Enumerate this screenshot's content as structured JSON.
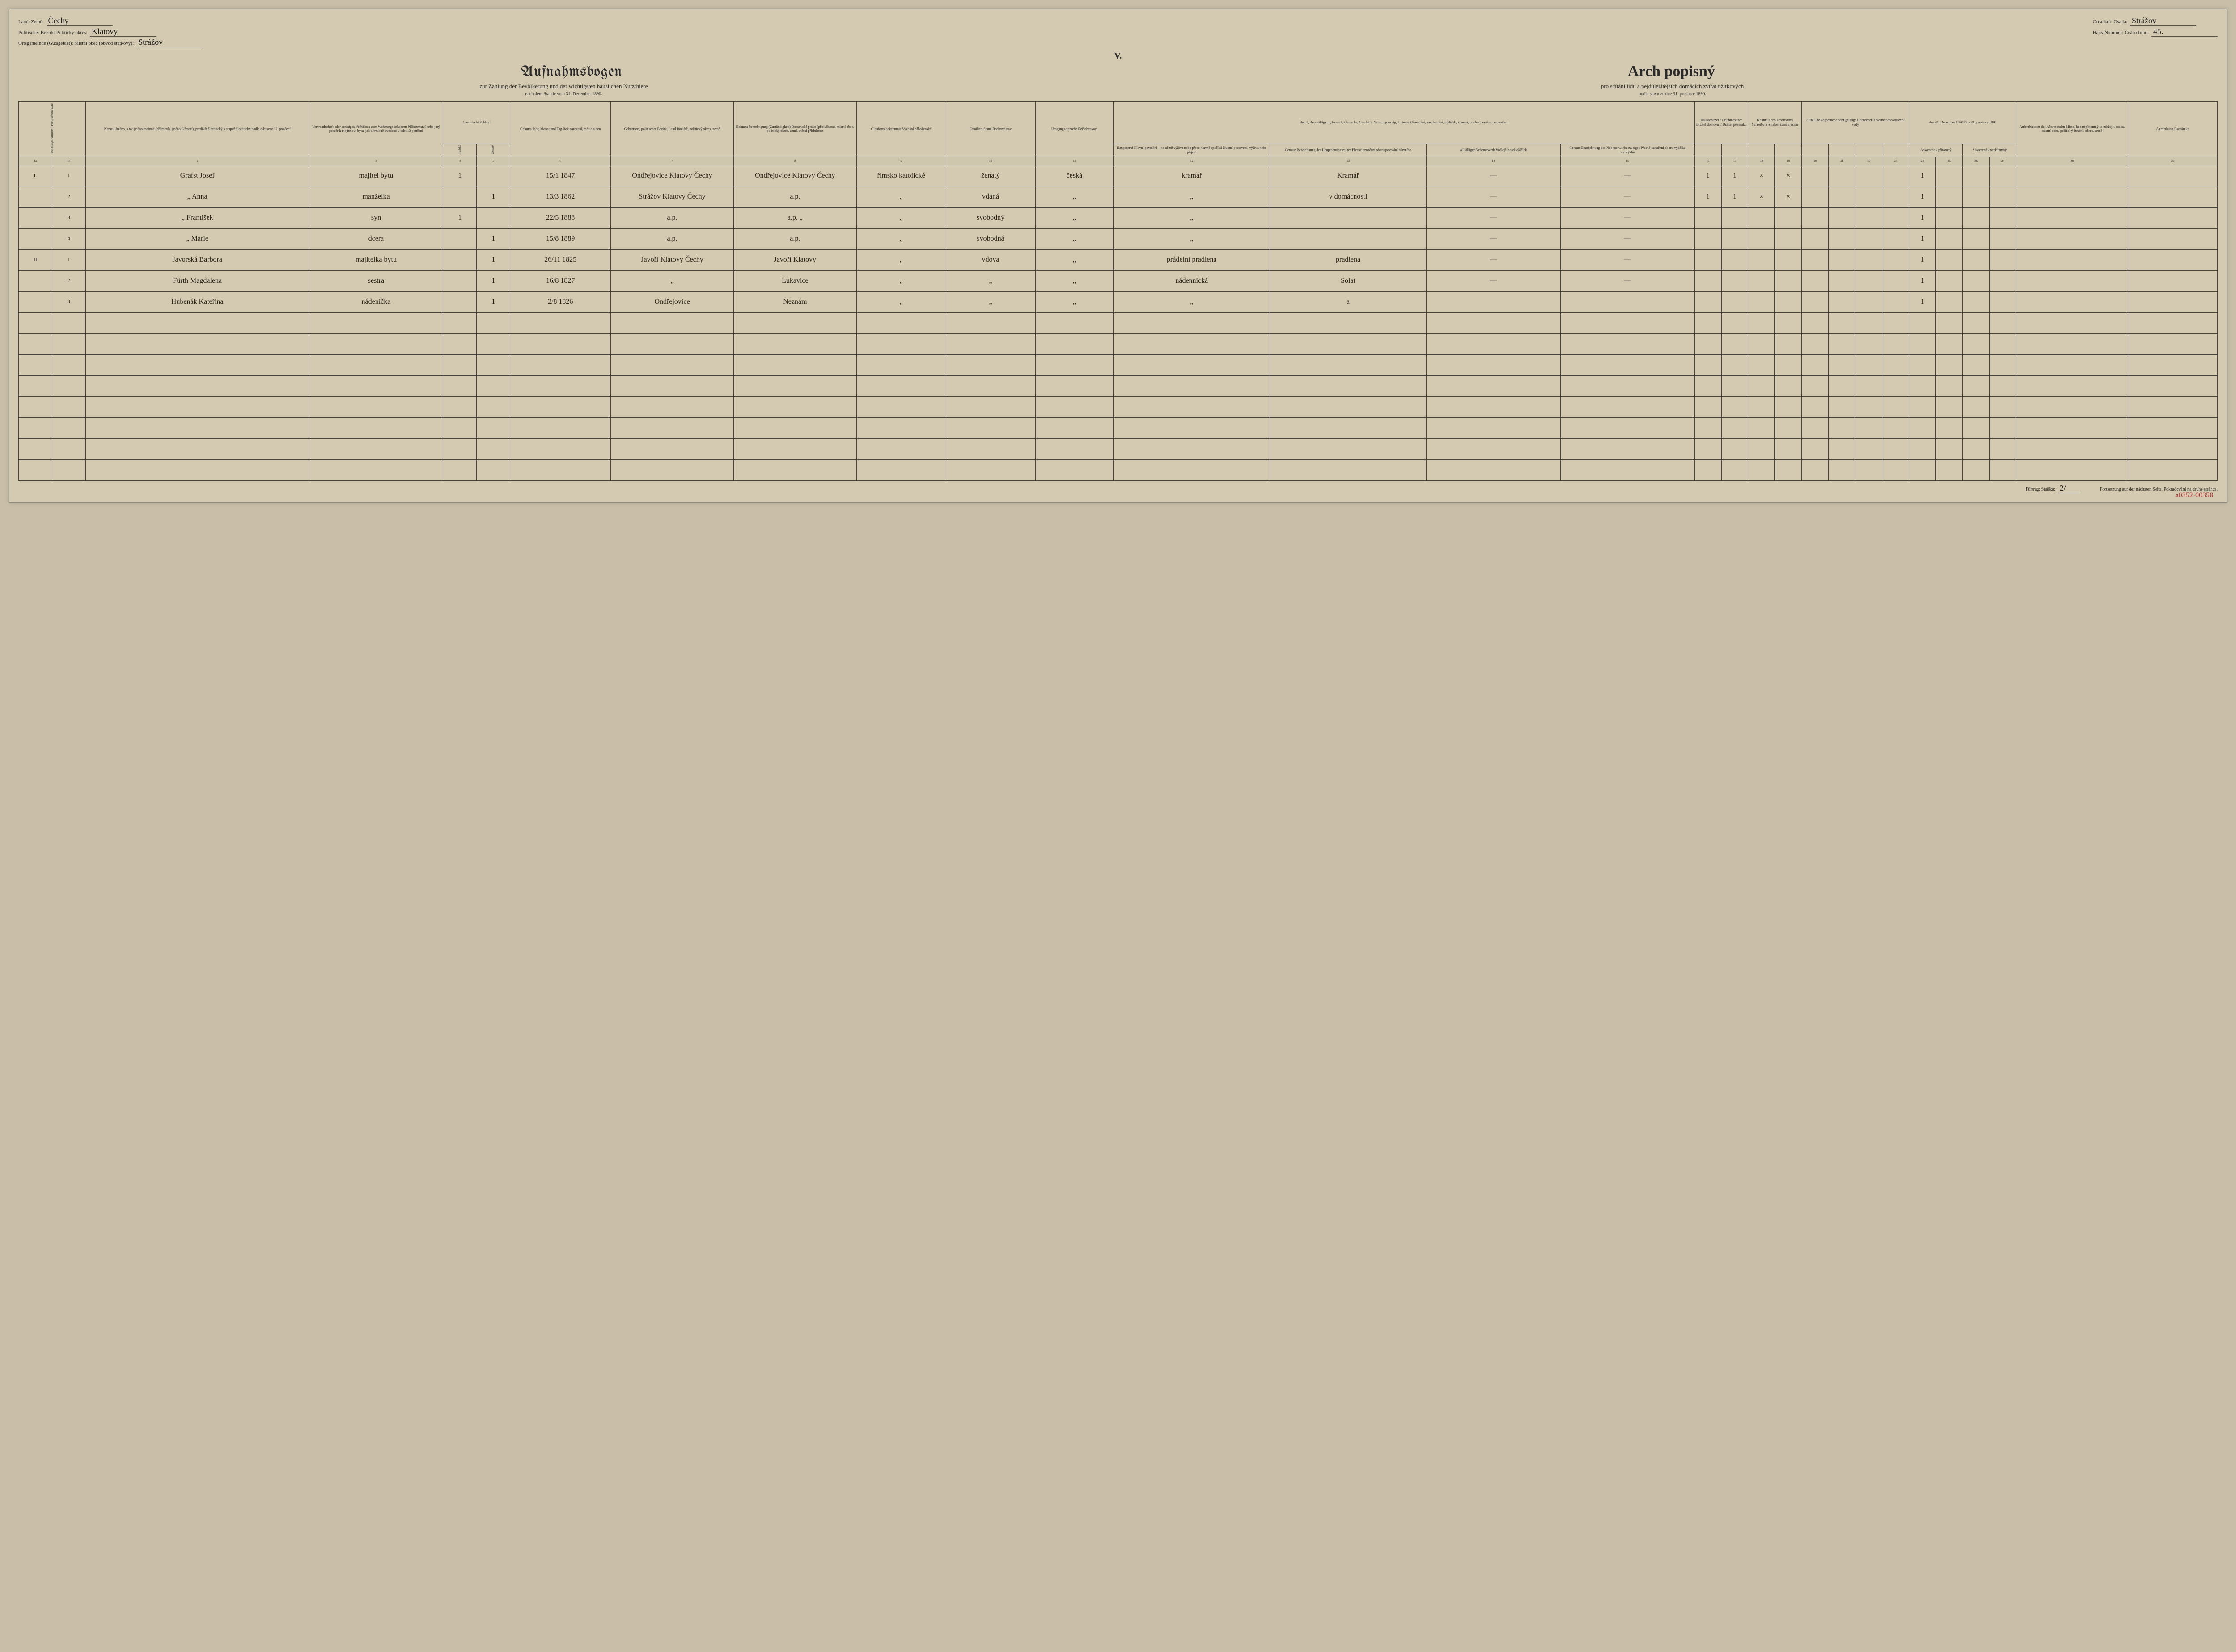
{
  "roman": "V.",
  "top": {
    "land_label": "Land:\nZemě:",
    "land_value": "Čechy",
    "bezirk_label": "Politischer Bezirk:\nPolitický okres:",
    "bezirk_value": "Klatovy",
    "ort_label": "Ortsgemeinde (Gutsgebiet):\nMístní obec (obvod statkový):",
    "ort_value": "Strážov",
    "ortschaft_label": "Ortschaft:\nOsada:",
    "ortschaft_value": "Strážov",
    "haus_label": "Haus-Nummer:\nČíslo domu:",
    "haus_value": "45."
  },
  "titles": {
    "de": "Aufnahmsbogen",
    "cz": "Arch popisný",
    "sub_de": "zur Zählung der Bevölkerung und der wichtigsten häuslichen Nutzthiere",
    "sub_cz": "pro sčítání lidu a nejdůležitějších domácích zvířat užitkových",
    "date_de": "nach dem Stande vom 31. December 1890.",
    "date_cz": "podle stavu ze dne 31. prosince 1890."
  },
  "headers": {
    "c1": "",
    "c2": "Name / Jméno,\na to:\njméno rodinné (příjmení),\njméno (křestní),\npredikát šlechtický a stupeň\nšlechtický podle odstavce 12.\npoučení",
    "c3": "Verwandschaft oder sonstiges Verhältnis zum Wohnungs-inhabern\nPříbuzenství nebo jiný poměr k majitelovi bytu, jak zevrubně uvedeno v odst.13 poučení",
    "c4_5": "Geschlecht\nPohlaví",
    "c4": "mužské",
    "c5": "ženské",
    "c6": "Geburts-Jahr, Monat und Tag\nRok narození, měsíc a den",
    "c7": "Geburtsort, politischer Bezirk, Land\nRodiště, politický okres, země",
    "c8": "Heimats-berechtigung (Zuständigkeit)\nDomovské právo (příslušnost), místní obec, politický okres, země, státní příslušnost",
    "c9": "Glaubens-bekenntnis\nVyznání náboženské",
    "c10": "Familien-Stand\nRodinný stav",
    "c11": "Umgangs-sprache\nŘeč obcovací",
    "c12_15": "Beruf, Beschäftigung, Erwerb, Gewerbe, Geschäft, Nahrungszweig, Unterhalt\nPovolání, zaměstnání, výdělek, živnost, obchod, výživa, zaopatření",
    "c12": "Hauptberuf\nHlavní povolání – na němž výživa nebo přece hlavně spočívá životní postavení, výživa nebo příjem",
    "c13": "Genaue Bezeichnung des Hauptberufszweiges\nPřesné označení oboru povolání hlavního",
    "c14": "Allfälliger Nebenerwerb\nVedlejší snad výdělek",
    "c15": "Genaue Bezeichnung des Nebenerwerbs-zweiges\nPřesné označení oboru výdělku vedlejšího",
    "c16_17": "Hausbesitzer / Grundbesitzer\nDržitel domovni / Držitel pozemku",
    "c18_19": "Kenntnis des Lesens und Schreibens\nZnalost čtení a psaní",
    "c20_23": "Allfällige körperliche oder geistige Gebrechen\nTělesné nebo duševní vady",
    "c24_27": "Am 31. December 1890\nDne 31. prosince 1890",
    "c24_25": "Anwesend / přítomný",
    "c26_27": "Abwesend / nepřítomný",
    "c28": "Aufenthaltsort des Abwesenden\nMísto, kde nepřítomný se zdržuje, osada, místní obec, politický Bezirk, okres, země",
    "c29": "Anmerkung\nPoznámka"
  },
  "colnums": [
    "1a",
    "1b",
    "2",
    "3",
    "4",
    "5",
    "6",
    "7",
    "8",
    "9",
    "10",
    "11",
    "12",
    "13",
    "14",
    "15",
    "16",
    "17",
    "18",
    "19",
    "20",
    "21",
    "22",
    "23",
    "24",
    "25",
    "26",
    "27",
    "28",
    "29"
  ],
  "rows": [
    {
      "ia": "I.",
      "ib": "1",
      "name": "Grafst Josef",
      "rel": "majitel bytu",
      "m": "1",
      "f": "",
      "dob": "15/1 1847",
      "birth": "Ondřejovice Klatovy Čechy",
      "home": "Ondřejovice Klatovy Čechy",
      "rel2": "římsko katolické",
      "stand": "ženatý",
      "lang": "česká",
      "occ": "kramář",
      "occ2": "Kramář",
      "side": "—",
      "side2": "—",
      "h1": "1",
      "h2": "1",
      "rw1": "×",
      "rw2": "×",
      "pres": "1"
    },
    {
      "ia": "",
      "ib": "2",
      "name": "„ Anna",
      "rel": "manželka",
      "m": "",
      "f": "1",
      "dob": "13/3 1862",
      "birth": "Strážov Klatovy Čechy",
      "home": "a.p.",
      "rel2": "„",
      "stand": "vdaná",
      "lang": "„",
      "occ": "„",
      "occ2": "v domácnosti",
      "side": "—",
      "side2": "—",
      "h1": "1",
      "h2": "1",
      "rw1": "×",
      "rw2": "×",
      "pres": "1"
    },
    {
      "ia": "",
      "ib": "3",
      "name": "„ František",
      "rel": "syn",
      "m": "1",
      "f": "",
      "dob": "22/5 1888",
      "birth": "a.p.",
      "home": "a.p. „",
      "rel2": "„",
      "stand": "svobodný",
      "lang": "„",
      "occ": "„",
      "occ2": "",
      "side": "—",
      "side2": "—",
      "h1": "",
      "h2": "",
      "rw1": "",
      "rw2": "",
      "pres": "1"
    },
    {
      "ia": "",
      "ib": "4",
      "name": "„ Marie",
      "rel": "dcera",
      "m": "",
      "f": "1",
      "dob": "15/8 1889",
      "birth": "a.p.",
      "home": "a.p.",
      "rel2": "„",
      "stand": "svobodná",
      "lang": "„",
      "occ": "„",
      "occ2": "",
      "side": "—",
      "side2": "—",
      "h1": "",
      "h2": "",
      "rw1": "",
      "rw2": "",
      "pres": "1"
    },
    {
      "ia": "II",
      "ib": "1",
      "name": "Javorská Barbora",
      "rel": "majitelka bytu",
      "m": "",
      "f": "1",
      "dob": "26/11 1825",
      "birth": "Javoří Klatovy Čechy",
      "home": "Javoří Klatovy",
      "rel2": "„",
      "stand": "vdova",
      "lang": "„",
      "occ": "prádelní pradlena",
      "occ2": "pradlena",
      "side": "—",
      "side2": "—",
      "h1": "",
      "h2": "",
      "rw1": "",
      "rw2": "",
      "pres": "1"
    },
    {
      "ia": "",
      "ib": "2",
      "name": "Fürth Magdalena",
      "rel": "sestra",
      "m": "",
      "f": "1",
      "dob": "16/8 1827",
      "birth": "„",
      "home": "Lukavice",
      "rel2": "„",
      "stand": "„",
      "lang": "„",
      "occ": "nádennická",
      "occ2": "Solat",
      "side": "—",
      "side2": "—",
      "h1": "",
      "h2": "",
      "rw1": "",
      "rw2": "",
      "pres": "1"
    },
    {
      "ia": "",
      "ib": "3",
      "name": "Hubenák Kateřina",
      "rel": "nádeníčka",
      "m": "",
      "f": "1",
      "dob": "2/8 1826",
      "birth": "Ondřejovice",
      "home": "Neznám",
      "rel2": "„",
      "stand": "„",
      "lang": "„",
      "occ": "„",
      "occ2": "a",
      "side": "",
      "side2": "",
      "h1": "",
      "h2": "",
      "rw1": "",
      "rw2": "",
      "pres": "1"
    }
  ],
  "footer": {
    "furtrag": "Fürtrag:\nSnáška:",
    "furtrag_val": "2/",
    "fort": "Fortsetzung auf der nächsten Seite.\nPokračování na druhé stránce."
  },
  "catalog": "a0352-00358"
}
